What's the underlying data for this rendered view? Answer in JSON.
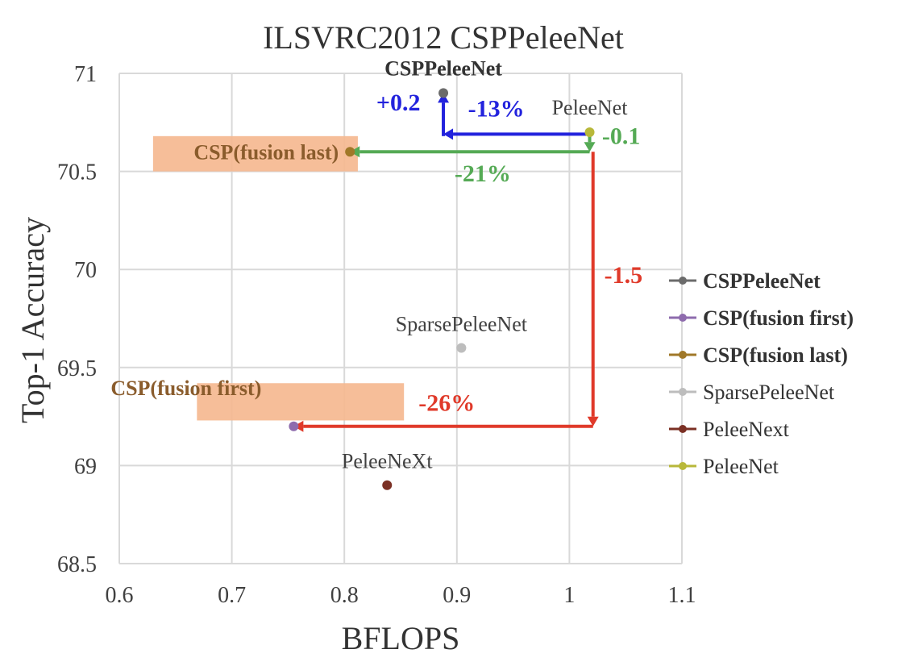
{
  "chart_data": {
    "type": "scatter",
    "title": "ILSVRC2012 CSPPeleeNet",
    "xlabel": "BFLOPS",
    "ylabel": "Top-1 Accuracy",
    "xlim": [
      0.6,
      1.1
    ],
    "ylim": [
      68.5,
      71
    ],
    "x_ticks": [
      "0.6",
      "0.7",
      "0.8",
      "0.9",
      "1",
      "1.1"
    ],
    "y_ticks": [
      "68.5",
      "69",
      "69.5",
      "70",
      "70.5",
      "71"
    ],
    "grid": true,
    "legend_position": "right",
    "series": [
      {
        "name": "CSPPeleeNet",
        "x": 0.888,
        "y": 70.9,
        "color": "#6b6b6b",
        "bold": true,
        "point_label": "CSPPeleeNet"
      },
      {
        "name": "CSP(fusion first)",
        "x": 0.755,
        "y": 69.2,
        "color": "#8e6bad",
        "bold": true,
        "point_label": "CSP(fusion first)"
      },
      {
        "name": "CSP(fusion last)",
        "x": 0.805,
        "y": 70.6,
        "color": "#a07828",
        "bold": true,
        "point_label": "CSP(fusion last)"
      },
      {
        "name": "SparsePeleeNet",
        "x": 0.904,
        "y": 69.6,
        "color": "#bdbdbd",
        "bold": false,
        "point_label": "SparsePeleeNet"
      },
      {
        "name": "PeleeNext",
        "x": 0.838,
        "y": 68.9,
        "color": "#7b3024",
        "bold": false,
        "point_label": "PeleeNeXt"
      },
      {
        "name": "PeleeNet",
        "x": 1.018,
        "y": 70.7,
        "color": "#b8b83a",
        "bold": false,
        "point_label": "PeleeNet"
      }
    ],
    "annotations": [
      {
        "text": "+0.2",
        "color": "#2222dd",
        "x": 0.848,
        "y": 70.81
      },
      {
        "text": "-13%",
        "color": "#2222dd",
        "x": 0.935,
        "y": 70.78
      },
      {
        "text": "-0.1",
        "color": "#55aa55",
        "x": 1.046,
        "y": 70.64
      },
      {
        "text": "-21%",
        "color": "#55aa55",
        "x": 0.923,
        "y": 70.45
      },
      {
        "text": "-1.5",
        "color": "#e03a2a",
        "x": 1.048,
        "y": 69.93
      },
      {
        "text": "-26%",
        "color": "#e03a2a",
        "x": 0.891,
        "y": 69.28
      }
    ],
    "arrows": [
      {
        "color": "#2222dd",
        "from": [
          1.018,
          70.69
        ],
        "to": [
          0.888,
          70.69
        ],
        "dir": "left"
      },
      {
        "color": "#2222dd",
        "from": [
          0.888,
          70.68
        ],
        "to": [
          0.888,
          70.9
        ],
        "dir": "up"
      },
      {
        "color": "#55aa55",
        "from": [
          1.018,
          70.6
        ],
        "to": [
          0.805,
          70.6
        ],
        "dir": "left"
      },
      {
        "color": "#55aa55",
        "from": [
          1.018,
          70.7
        ],
        "to": [
          1.018,
          70.6
        ],
        "dir": "down"
      },
      {
        "color": "#e03a2a",
        "from": [
          1.021,
          70.6
        ],
        "to": [
          1.021,
          69.2
        ],
        "dir": "down"
      },
      {
        "color": "#e03a2a",
        "from": [
          1.021,
          69.2
        ],
        "to": [
          0.755,
          69.2
        ],
        "dir": "left"
      }
    ],
    "highlights": [
      {
        "label": "CSP(fusion last)",
        "x0": 0.63,
        "x1": 0.812,
        "y0": 70.5,
        "y1": 70.68
      },
      {
        "label": "CSP(fusion first)",
        "x0": 0.669,
        "x1": 0.853,
        "y0": 69.23,
        "y1": 69.42
      }
    ]
  }
}
